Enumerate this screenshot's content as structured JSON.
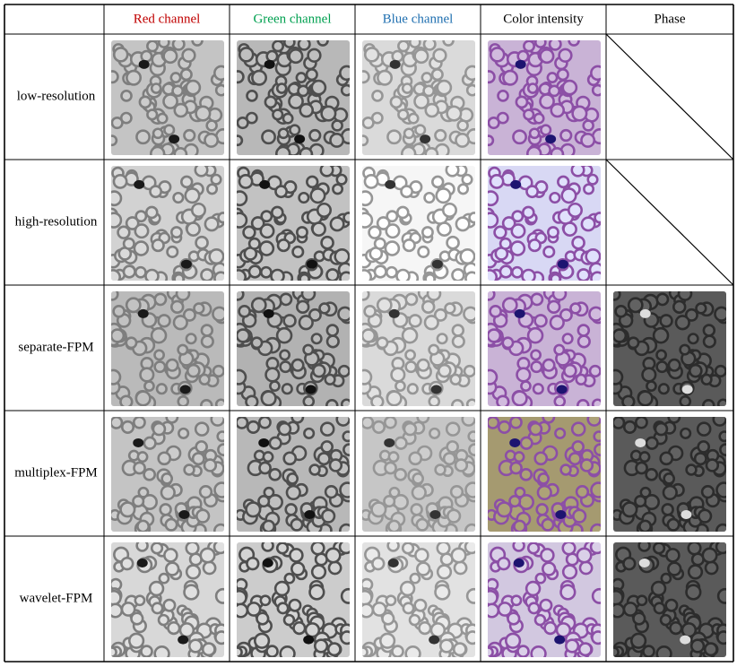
{
  "table": {
    "columns": [
      "Red channel",
      "Green channel",
      "Blue channel",
      "Color intensity",
      "Phase"
    ],
    "rows": [
      "low-resolution",
      "high-resolution",
      "separate-FPM",
      "multiplex-FPM",
      "wavelet-FPM"
    ]
  }
}
